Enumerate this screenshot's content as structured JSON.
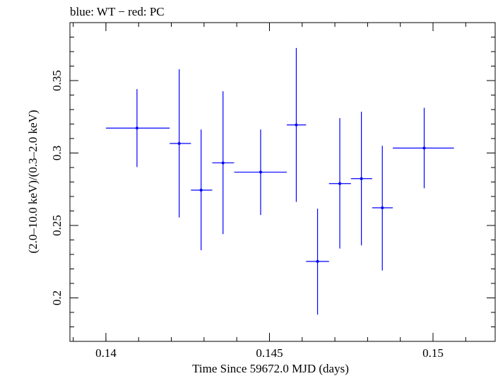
{
  "chart_data": {
    "type": "scatter",
    "title": "blue: WT − red: PC",
    "xlabel": "Time Since 59672.0 MJD (days)",
    "ylabel": "(2.0–10.0 keV)/(0.3–2.0 keV)",
    "xlim": [
      0.1389,
      0.1519
    ],
    "ylim": [
      0.17,
      0.39
    ],
    "x_ticks": [
      {
        "value": 0.14,
        "label": "0.14"
      },
      {
        "value": 0.145,
        "label": "0.145"
      },
      {
        "value": 0.15,
        "label": "0.15"
      }
    ],
    "y_ticks": [
      {
        "value": 0.2,
        "label": "0.2"
      },
      {
        "value": 0.25,
        "label": "0.25"
      },
      {
        "value": 0.3,
        "label": "0.3"
      },
      {
        "value": 0.35,
        "label": "0.35"
      }
    ],
    "x_minor_step": 0.001,
    "y_minor_step": 0.01,
    "grid": false,
    "series": [
      {
        "name": "WT",
        "color": "#0000ff",
        "points": [
          {
            "x": 0.14095,
            "xerr_lo": 0.14,
            "xerr_hi": 0.14195,
            "y": 0.3172,
            "y_lo": 0.2903,
            "y_hi": 0.3441
          },
          {
            "x": 0.14224,
            "xerr_lo": 0.14195,
            "xerr_hi": 0.1426,
            "y": 0.3066,
            "y_lo": 0.2555,
            "y_hi": 0.3578
          },
          {
            "x": 0.14291,
            "xerr_lo": 0.1426,
            "xerr_hi": 0.14325,
            "y": 0.2744,
            "y_lo": 0.2329,
            "y_hi": 0.3162
          },
          {
            "x": 0.14358,
            "xerr_lo": 0.14325,
            "xerr_hi": 0.14392,
            "y": 0.2932,
            "y_lo": 0.244,
            "y_hi": 0.3426
          },
          {
            "x": 0.14473,
            "xerr_lo": 0.14392,
            "xerr_hi": 0.14553,
            "y": 0.2868,
            "y_lo": 0.2572,
            "y_hi": 0.3162
          },
          {
            "x": 0.14582,
            "xerr_lo": 0.14553,
            "xerr_hi": 0.14612,
            "y": 0.3194,
            "y_lo": 0.2663,
            "y_hi": 0.3725
          },
          {
            "x": 0.14647,
            "xerr_lo": 0.14612,
            "xerr_hi": 0.14682,
            "y": 0.2252,
            "y_lo": 0.1885,
            "y_hi": 0.2616
          },
          {
            "x": 0.14715,
            "xerr_lo": 0.14682,
            "xerr_hi": 0.14749,
            "y": 0.2789,
            "y_lo": 0.2341,
            "y_hi": 0.3241
          },
          {
            "x": 0.14781,
            "xerr_lo": 0.14749,
            "xerr_hi": 0.14814,
            "y": 0.2823,
            "y_lo": 0.2362,
            "y_hi": 0.3285
          },
          {
            "x": 0.14845,
            "xerr_lo": 0.14814,
            "xerr_hi": 0.14877,
            "y": 0.2622,
            "y_lo": 0.2189,
            "y_hi": 0.305
          },
          {
            "x": 0.14973,
            "xerr_lo": 0.14877,
            "xerr_hi": 0.15064,
            "y": 0.3034,
            "y_lo": 0.2757,
            "y_hi": 0.3312
          }
        ]
      }
    ]
  }
}
